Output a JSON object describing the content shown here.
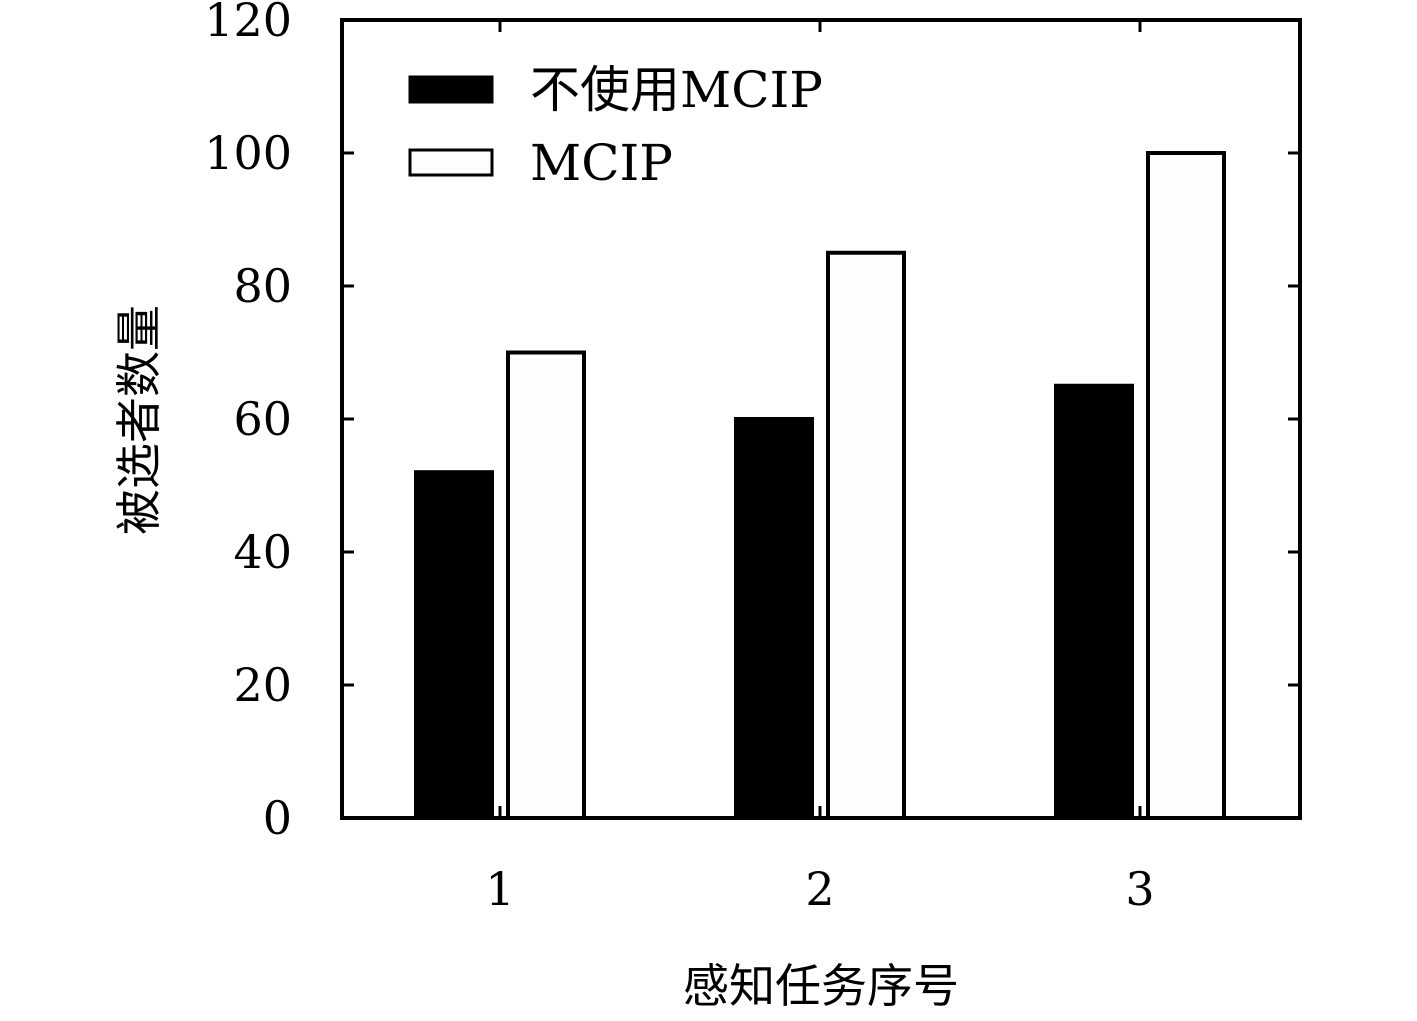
{
  "chart_data": {
    "type": "bar",
    "categories": [
      "1",
      "2",
      "3"
    ],
    "series": [
      {
        "name": "不使用MCIP",
        "values": [
          52,
          60,
          65
        ],
        "fill": "#000000"
      },
      {
        "name": "MCIP",
        "values": [
          70,
          85,
          100
        ],
        "fill": "#fdfdfd"
      }
    ],
    "xlabel": "感知任务序号",
    "ylabel": "被选者数量",
    "ylim": [
      0,
      120
    ],
    "yticks": [
      0,
      20,
      40,
      60,
      80,
      100,
      120
    ],
    "legend_position": "top-left",
    "grid": false
  }
}
